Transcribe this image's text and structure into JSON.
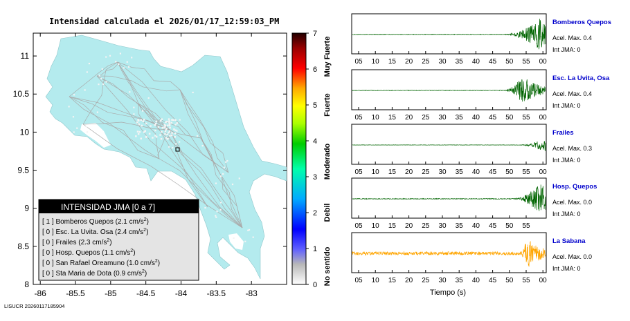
{
  "map": {
    "title": "Intensidad calculada el 2026/01/17_12:59:03_PM",
    "x_ticks": [
      -86,
      -85.5,
      -85,
      -84.5,
      -84,
      -83.5,
      -83
    ],
    "x_tick_labels": [
      "-86",
      "-85.5",
      "-85",
      "-84.5",
      "-84",
      "-83.5",
      "-83"
    ],
    "y_ticks": [
      8,
      8.5,
      9,
      9.5,
      10,
      10.5,
      11
    ],
    "y_tick_labels": [
      "8",
      "8.5",
      "9",
      "9.5",
      "10",
      "10.5",
      "11"
    ],
    "xlim": [
      -86.1,
      -82.5
    ],
    "ylim": [
      8,
      11.3
    ],
    "land_color": "#b4ebee",
    "road_color": "#aaaaaa"
  },
  "colorbar": {
    "ticks": [
      "0",
      "1",
      "2",
      "3",
      "4",
      "5",
      "6",
      "7"
    ],
    "labels": [
      "No sentido",
      "Debil",
      "Moderado",
      "Fuerte",
      "Muy Fuerte"
    ]
  },
  "legend": {
    "title": "INTENSIDAD JMA [0 a 7]",
    "unit": "cm/s",
    "unit_exp": "2",
    "items": [
      {
        "jma": "[ 1 ]",
        "name": "Bomberos Quepos",
        "acc": "2.1"
      },
      {
        "jma": "[ 0 ]",
        "name": "Esc. La Uvita. Osa",
        "acc": "2.4"
      },
      {
        "jma": "[ 0 ]",
        "name": "Frailes",
        "acc": "2.3"
      },
      {
        "jma": "[ 0 ]",
        "name": "Hosp. Quepos",
        "acc": "1.1"
      },
      {
        "jma": "[ 0 ]",
        "name": "San Rafael Oreamuno",
        "acc": "1.0"
      },
      {
        "jma": "[ 0 ]",
        "name": "Sta Maria de Dota",
        "acc": "0.9"
      }
    ]
  },
  "footer": "LISUCR 20260117185904",
  "time_axis_label": "Tiempo (s)",
  "station_name_color": "#0000cc",
  "chart_data": [
    {
      "type": "line",
      "name": "Bomberos Quepos",
      "color": "#006400",
      "x_tick_labels": [
        "05",
        "10",
        "15",
        "20",
        "25",
        "30",
        "35",
        "40",
        "45",
        "50",
        "55",
        "00"
      ],
      "accel_max_label": "Acel. Max. 0.4",
      "jma_label": "Int JMA: 0",
      "noise": 0.015,
      "event_start": 0.78,
      "event_peak": 0.97,
      "event_amp": 0.85
    },
    {
      "type": "line",
      "name": "Esc. La Uvita, Osa",
      "color": "#006400",
      "x_tick_labels": [
        "05",
        "10",
        "15",
        "20",
        "25",
        "30",
        "35",
        "40",
        "45",
        "50",
        "55",
        "00"
      ],
      "accel_max_label": "Acel. Max. 0.4",
      "jma_label": "Int JMA: 0",
      "noise": 0.015,
      "event_start": 0.78,
      "event_peak": 0.88,
      "event_amp": 0.8
    },
    {
      "type": "line",
      "name": "Frailes",
      "color": "#006400",
      "x_tick_labels": [
        "05",
        "10",
        "15",
        "20",
        "25",
        "30",
        "35",
        "40",
        "45",
        "50",
        "55",
        "00"
      ],
      "accel_max_label": "Acel. Max. 0.3",
      "jma_label": "Int JMA: 0",
      "noise": 0.01,
      "event_start": 0.86,
      "event_peak": 0.99,
      "event_amp": 0.35
    },
    {
      "type": "line",
      "name": "Hosp. Quepos",
      "color": "#006400",
      "x_tick_labels": [
        "05",
        "10",
        "15",
        "20",
        "25",
        "30",
        "35",
        "40",
        "45",
        "50",
        "55"
      ],
      "accel_max_label": "Acel. Max. 0.0",
      "jma_label": "Int JMA: 0",
      "noise": 0.02,
      "event_start": 0.83,
      "event_peak": 0.97,
      "event_amp": 0.85
    },
    {
      "type": "line",
      "name": "La Sabana",
      "color": "#ffa500",
      "x_tick_labels": [
        "05",
        "10",
        "15",
        "20",
        "25",
        "30",
        "35",
        "40",
        "45",
        "50",
        "55",
        "00"
      ],
      "accel_max_label": "Acel. Max. 0.0",
      "jma_label": "Int JMA: 0",
      "noise": 0.09,
      "event_start": 0.87,
      "event_peak": 0.9,
      "event_amp": 0.85
    }
  ]
}
